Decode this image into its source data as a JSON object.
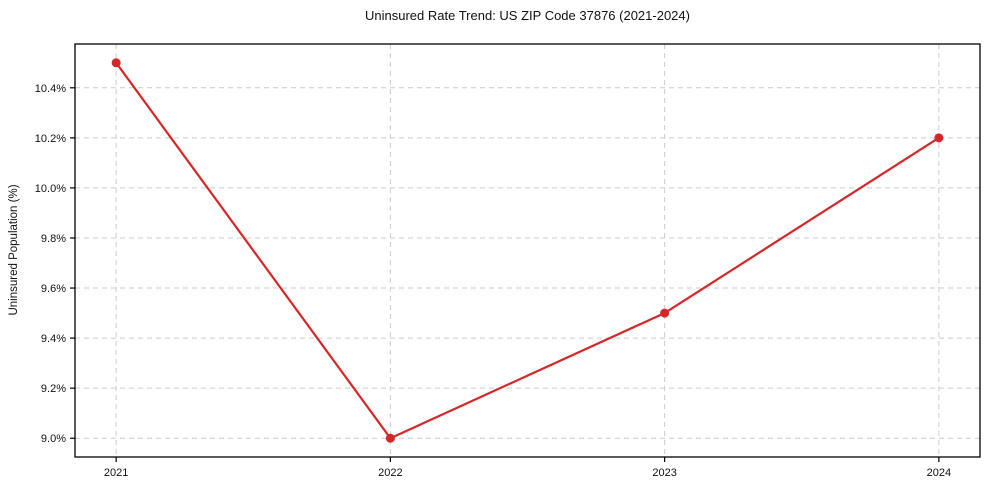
{
  "chart_data": {
    "type": "line",
    "title": "Uninsured Rate Trend: US ZIP Code 37876 (2021-2024)",
    "xlabel": "",
    "ylabel": "Uninsured Population (%)",
    "categories": [
      "2021",
      "2022",
      "2023",
      "2024"
    ],
    "values": [
      10.5,
      9.0,
      9.5,
      10.2
    ],
    "ytick_values": [
      9.0,
      9.2,
      9.4,
      9.6,
      9.8,
      10.0,
      10.2,
      10.4
    ],
    "ytick_labels": [
      "9.0%",
      "9.2%",
      "9.4%",
      "9.6%",
      "9.8%",
      "10.0%",
      "10.2%",
      "10.4%"
    ],
    "ylim": [
      8.925,
      10.575
    ],
    "grid": "dashed",
    "legend": "none",
    "line_color": "#d62728",
    "marker": "circle",
    "grid_color": "#cccccc",
    "axis_color": "#000000"
  }
}
